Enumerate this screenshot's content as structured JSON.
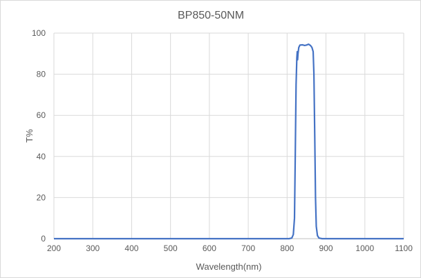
{
  "chart_data": {
    "type": "line",
    "title": "BP850-50NM",
    "xlabel": "Wavelength(nm)",
    "ylabel": "T%",
    "xlim": [
      200,
      1100
    ],
    "ylim": [
      0,
      100
    ],
    "xticks": [
      200,
      300,
      400,
      500,
      600,
      700,
      800,
      900,
      1000,
      1100
    ],
    "yticks": [
      0,
      20,
      40,
      60,
      80,
      100
    ],
    "grid": true,
    "legend": "none",
    "line_color": "#4472C4",
    "series": [
      {
        "x": [
          200,
          805,
          812,
          816,
          819,
          821,
          823,
          825,
          826,
          827,
          828,
          830,
          833,
          840,
          845,
          850,
          855,
          860,
          864,
          867,
          869,
          871,
          873,
          875,
          878,
          882,
          890,
          1100
        ],
        "y": [
          0,
          0,
          0.3,
          2,
          10,
          40,
          75,
          88,
          91,
          87,
          90,
          93,
          94.2,
          94.3,
          94,
          94.2,
          94.6,
          94,
          93,
          91,
          80,
          50,
          20,
          6,
          1.5,
          0.3,
          0,
          0
        ]
      }
    ]
  }
}
